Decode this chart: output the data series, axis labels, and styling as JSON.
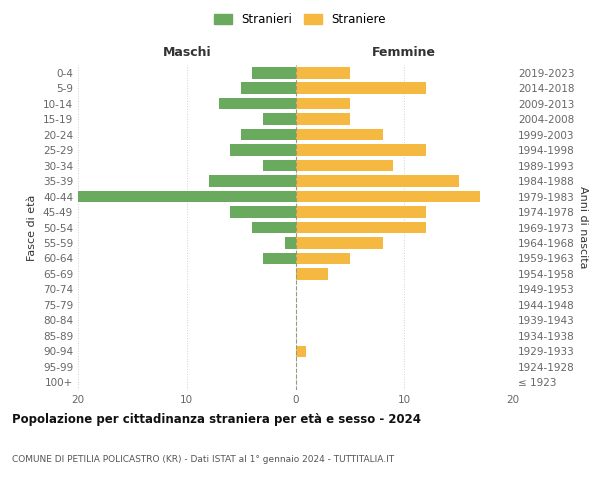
{
  "age_groups": [
    "100+",
    "95-99",
    "90-94",
    "85-89",
    "80-84",
    "75-79",
    "70-74",
    "65-69",
    "60-64",
    "55-59",
    "50-54",
    "45-49",
    "40-44",
    "35-39",
    "30-34",
    "25-29",
    "20-24",
    "15-19",
    "10-14",
    "5-9",
    "0-4"
  ],
  "birth_years": [
    "≤ 1923",
    "1924-1928",
    "1929-1933",
    "1934-1938",
    "1939-1943",
    "1944-1948",
    "1949-1953",
    "1954-1958",
    "1959-1963",
    "1964-1968",
    "1969-1973",
    "1974-1978",
    "1979-1983",
    "1984-1988",
    "1989-1993",
    "1994-1998",
    "1999-2003",
    "2004-2008",
    "2009-2013",
    "2014-2018",
    "2019-2023"
  ],
  "maschi": [
    0,
    0,
    0,
    0,
    0,
    0,
    0,
    0,
    3,
    1,
    4,
    6,
    20,
    8,
    3,
    6,
    5,
    3,
    7,
    5,
    4
  ],
  "femmine": [
    0,
    0,
    1,
    0,
    0,
    0,
    0,
    3,
    5,
    8,
    12,
    12,
    17,
    15,
    9,
    12,
    8,
    5,
    5,
    12,
    5
  ],
  "maschi_color": "#6aaa5e",
  "femmine_color": "#f5b942",
  "background_color": "#ffffff",
  "grid_color": "#d0d0d0",
  "center_line_color": "#999977",
  "title": "Popolazione per cittadinanza straniera per età e sesso - 2024",
  "subtitle": "COMUNE DI PETILIA POLICASTRO (KR) - Dati ISTAT al 1° gennaio 2024 - TUTTITALIA.IT",
  "xlabel_left": "Maschi",
  "xlabel_right": "Femmine",
  "ylabel_left": "Fasce di età",
  "ylabel_right": "Anni di nascita",
  "legend_maschi": "Stranieri",
  "legend_femmine": "Straniere",
  "xlim": 20,
  "bar_height": 0.75
}
